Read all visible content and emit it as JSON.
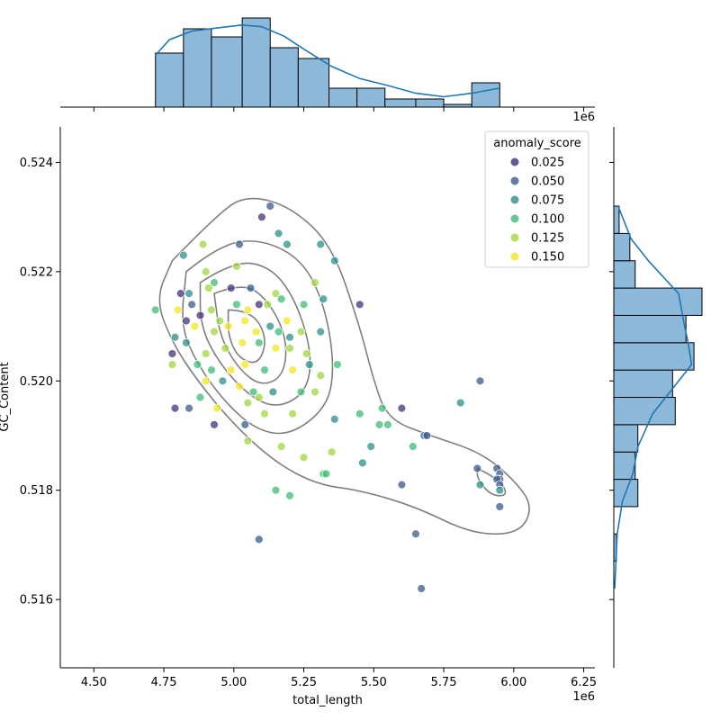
{
  "chart_data": {
    "type": "scatter",
    "title": "",
    "xlabel": "total_length",
    "ylabel": "GC_Content",
    "x_offset_label": "1e6",
    "xlim": [
      4.38,
      6.29
    ],
    "ylim": [
      0.51475,
      0.52465
    ],
    "xticks": [
      "4.50",
      "4.75",
      "5.00",
      "5.25",
      "5.50",
      "5.75",
      "6.00",
      "6.25"
    ],
    "yticks": [
      "0.516",
      "0.518",
      "0.520",
      "0.522",
      "0.524"
    ],
    "legend": {
      "title": "anomaly_score",
      "location": "top-right",
      "entries": [
        {
          "label": "0.025",
          "color": "#46307b"
        },
        {
          "label": "0.050",
          "color": "#3b5a8c"
        },
        {
          "label": "0.075",
          "color": "#2a8f8a"
        },
        {
          "label": "0.100",
          "color": "#3dbc74"
        },
        {
          "label": "0.125",
          "color": "#9fd73e"
        },
        {
          "label": "0.150",
          "color": "#f3e51e"
        }
      ]
    },
    "points": [
      [
        5.13,
        0.5232,
        0.05
      ],
      [
        5.1,
        0.523,
        0.025
      ],
      [
        5.02,
        0.5225,
        0.05
      ],
      [
        4.89,
        0.5225,
        0.125
      ],
      [
        4.82,
        0.5223,
        0.075
      ],
      [
        5.16,
        0.5227,
        0.075
      ],
      [
        5.19,
        0.5225,
        0.075
      ],
      [
        5.31,
        0.5225,
        0.075
      ],
      [
        5.36,
        0.5222,
        0.075
      ],
      [
        4.9,
        0.522,
        0.125
      ],
      [
        5.01,
        0.5221,
        0.125
      ],
      [
        5.29,
        0.5218,
        0.125
      ],
      [
        4.93,
        0.5218,
        0.1
      ],
      [
        4.81,
        0.5216,
        0.025
      ],
      [
        4.84,
        0.5216,
        0.075
      ],
      [
        4.91,
        0.5217,
        0.125
      ],
      [
        4.99,
        0.5217,
        0.025
      ],
      [
        5.06,
        0.5217,
        0.05
      ],
      [
        5.15,
        0.5216,
        0.125
      ],
      [
        5.17,
        0.5215,
        0.1
      ],
      [
        5.32,
        0.5215,
        0.075
      ],
      [
        5.45,
        0.5214,
        0.025
      ],
      [
        4.72,
        0.5213,
        0.1
      ],
      [
        4.8,
        0.5213,
        0.15
      ],
      [
        4.85,
        0.5214,
        0.05
      ],
      [
        4.92,
        0.5213,
        0.125
      ],
      [
        5.01,
        0.5214,
        0.1
      ],
      [
        5.05,
        0.5213,
        0.15
      ],
      [
        5.09,
        0.5214,
        0.025
      ],
      [
        5.12,
        0.5214,
        0.125
      ],
      [
        5.25,
        0.5214,
        0.1
      ],
      [
        4.83,
        0.5211,
        0.025
      ],
      [
        4.88,
        0.5212,
        0.025
      ],
      [
        4.95,
        0.5211,
        0.125
      ],
      [
        5.04,
        0.5211,
        0.15
      ],
      [
        5.13,
        0.521,
        0.075
      ],
      [
        5.19,
        0.5211,
        0.15
      ],
      [
        5.24,
        0.5209,
        0.125
      ],
      [
        5.31,
        0.5209,
        0.075
      ],
      [
        4.79,
        0.5208,
        0.075
      ],
      [
        4.86,
        0.521,
        0.15
      ],
      [
        4.93,
        0.5209,
        0.125
      ],
      [
        4.98,
        0.521,
        0.15
      ],
      [
        5.08,
        0.5209,
        0.15
      ],
      [
        5.16,
        0.5209,
        0.1
      ],
      [
        5.2,
        0.5208,
        0.075
      ],
      [
        4.78,
        0.5205,
        0.025
      ],
      [
        4.83,
        0.5207,
        0.075
      ],
      [
        4.9,
        0.5205,
        0.125
      ],
      [
        4.97,
        0.5206,
        0.125
      ],
      [
        5.03,
        0.5207,
        0.15
      ],
      [
        5.09,
        0.5207,
        0.1
      ],
      [
        5.15,
        0.5206,
        0.15
      ],
      [
        5.2,
        0.5206,
        0.125
      ],
      [
        5.26,
        0.5205,
        0.125
      ],
      [
        4.78,
        0.5203,
        0.125
      ],
      [
        4.87,
        0.5203,
        0.1
      ],
      [
        4.92,
        0.5202,
        0.1
      ],
      [
        4.99,
        0.5202,
        0.15
      ],
      [
        5.04,
        0.5203,
        0.15
      ],
      [
        5.11,
        0.5202,
        0.1
      ],
      [
        5.21,
        0.5202,
        0.15
      ],
      [
        5.27,
        0.5203,
        0.075
      ],
      [
        5.31,
        0.5201,
        0.125
      ],
      [
        5.37,
        0.5203,
        0.1
      ],
      [
        4.9,
        0.52,
        0.15
      ],
      [
        4.96,
        0.52,
        0.075
      ],
      [
        5.02,
        0.5199,
        0.15
      ],
      [
        5.07,
        0.5198,
        0.1
      ],
      [
        5.14,
        0.5198,
        0.075
      ],
      [
        5.24,
        0.5198,
        0.1
      ],
      [
        5.29,
        0.5198,
        0.125
      ],
      [
        4.88,
        0.5197,
        0.1
      ],
      [
        4.94,
        0.5195,
        0.15
      ],
      [
        5.05,
        0.5196,
        0.125
      ],
      [
        5.09,
        0.5197,
        0.125
      ],
      [
        4.79,
        0.5195,
        0.025
      ],
      [
        4.84,
        0.5195,
        0.05
      ],
      [
        4.93,
        0.5192,
        0.025
      ],
      [
        5.04,
        0.5192,
        0.05
      ],
      [
        5.11,
        0.5194,
        0.125
      ],
      [
        5.21,
        0.5194,
        0.125
      ],
      [
        5.36,
        0.5193,
        0.075
      ],
      [
        5.45,
        0.5194,
        0.1
      ],
      [
        5.53,
        0.5195,
        0.1
      ],
      [
        5.6,
        0.5195,
        0.025
      ],
      [
        5.81,
        0.5196,
        0.075
      ],
      [
        5.88,
        0.52,
        0.05
      ],
      [
        5.52,
        0.5192,
        0.1
      ],
      [
        5.55,
        0.5192,
        0.1
      ],
      [
        5.05,
        0.5189,
        0.125
      ],
      [
        5.17,
        0.5188,
        0.125
      ],
      [
        5.35,
        0.5187,
        0.125
      ],
      [
        5.49,
        0.5188,
        0.075
      ],
      [
        5.64,
        0.5188,
        0.1
      ],
      [
        5.68,
        0.519,
        0.05
      ],
      [
        5.69,
        0.519,
        0.05
      ],
      [
        5.25,
        0.5186,
        0.125
      ],
      [
        5.46,
        0.5185,
        0.075
      ],
      [
        5.87,
        0.5184,
        0.05
      ],
      [
        5.32,
        0.5183,
        0.1
      ],
      [
        5.33,
        0.5183,
        0.1
      ],
      [
        5.94,
        0.5184,
        0.05
      ],
      [
        5.95,
        0.5183,
        0.05
      ],
      [
        5.95,
        0.5182,
        0.05
      ],
      [
        5.94,
        0.5182,
        0.05
      ],
      [
        5.95,
        0.5181,
        0.05
      ],
      [
        5.88,
        0.5181,
        0.075
      ],
      [
        5.95,
        0.518,
        0.075
      ],
      [
        5.6,
        0.5181,
        0.05
      ],
      [
        5.15,
        0.518,
        0.1
      ],
      [
        5.2,
        0.5179,
        0.1
      ],
      [
        5.95,
        0.5177,
        0.05
      ],
      [
        5.65,
        0.5172,
        0.05
      ],
      [
        5.09,
        0.5171,
        0.05
      ],
      [
        5.67,
        0.5162,
        0.05
      ]
    ],
    "marginal_x": {
      "bin_edges": [
        4.72,
        4.82,
        4.92,
        5.03,
        5.13,
        5.23,
        5.34,
        5.44,
        5.54,
        5.65,
        5.75,
        5.85,
        5.95
      ],
      "counts": [
        20,
        29,
        26,
        33,
        22,
        18,
        7,
        7,
        3,
        3,
        1,
        9
      ]
    },
    "marginal_y": {
      "bin_edges": [
        0.5162,
        0.5167,
        0.5172,
        0.5177,
        0.5182,
        0.5187,
        0.5192,
        0.5197,
        0.5202,
        0.5207,
        0.5212,
        0.5217,
        0.5222,
        0.5227,
        0.5232
      ],
      "counts": [
        0,
        1,
        0,
        9,
        8,
        9,
        23,
        22,
        30,
        27,
        33,
        8,
        6,
        2
      ]
    }
  }
}
